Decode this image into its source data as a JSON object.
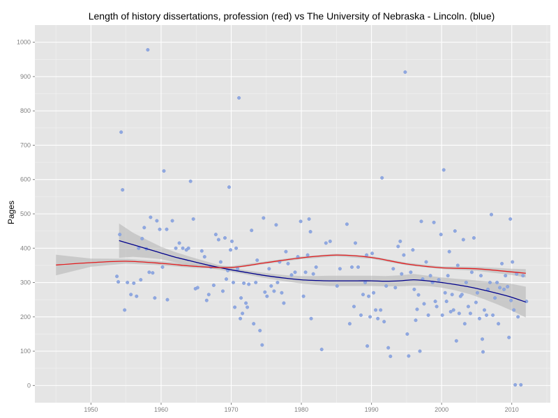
{
  "chart_data": {
    "type": "scatter",
    "title": "Length of history dissertations, profession (red) vs The University of Nebraska - Lincoln. (blue)",
    "xlabel": "",
    "ylabel": "Pages",
    "xlim": [
      1942,
      2015.5
    ],
    "ylim": [
      -50,
      1050
    ],
    "x_ticks": [
      1950,
      1960,
      1970,
      1980,
      1990,
      2000,
      2010
    ],
    "y_ticks": [
      0,
      100,
      200,
      300,
      400,
      500,
      600,
      700,
      800,
      900,
      1000
    ],
    "grid": true,
    "legend": "none",
    "colors": {
      "panel": "#e5e5e5",
      "grid_major": "#ffffff",
      "grid_minor": "#f2f2f2",
      "points": "#8fa8e0",
      "ribbon": "#b3b3b3",
      "unl_line": "#00008b",
      "profession_line": "#e31a1c"
    },
    "points": [
      [
        1953.7,
        318
      ],
      [
        1953.9,
        302
      ],
      [
        1954.1,
        440
      ],
      [
        1954.3,
        738
      ],
      [
        1954.5,
        570
      ],
      [
        1954.8,
        220
      ],
      [
        1955.2,
        300
      ],
      [
        1955.7,
        265
      ],
      [
        1956.1,
        298
      ],
      [
        1956.5,
        260
      ],
      [
        1956.8,
        400
      ],
      [
        1957.1,
        308
      ],
      [
        1957.3,
        428
      ],
      [
        1957.6,
        460
      ],
      [
        1957.9,
        398
      ],
      [
        1958.1,
        978
      ],
      [
        1958.3,
        330
      ],
      [
        1958.5,
        490
      ],
      [
        1958.8,
        328
      ],
      [
        1959.1,
        255
      ],
      [
        1959.4,
        480
      ],
      [
        1959.8,
        455
      ],
      [
        1960.2,
        345
      ],
      [
        1960.4,
        625
      ],
      [
        1960.8,
        455
      ],
      [
        1960.9,
        250
      ],
      [
        1961.6,
        480
      ],
      [
        1962.1,
        400
      ],
      [
        1962.6,
        415
      ],
      [
        1963.1,
        400
      ],
      [
        1963.6,
        395
      ],
      [
        1963.9,
        400
      ],
      [
        1964.2,
        595
      ],
      [
        1964.6,
        485
      ],
      [
        1964.9,
        282
      ],
      [
        1965.2,
        285
      ],
      [
        1965.8,
        392
      ],
      [
        1966.2,
        375
      ],
      [
        1966.5,
        248
      ],
      [
        1966.8,
        265
      ],
      [
        1967.1,
        345
      ],
      [
        1967.5,
        292
      ],
      [
        1967.8,
        440
      ],
      [
        1968.2,
        425
      ],
      [
        1968.5,
        360
      ],
      [
        1968.8,
        275
      ],
      [
        1969.1,
        430
      ],
      [
        1969.3,
        310
      ],
      [
        1969.5,
        335
      ],
      [
        1969.7,
        578
      ],
      [
        1969.9,
        395
      ],
      [
        1970.1,
        420
      ],
      [
        1970.3,
        300
      ],
      [
        1970.5,
        228
      ],
      [
        1970.7,
        400
      ],
      [
        1970.9,
        340
      ],
      [
        1971.1,
        838
      ],
      [
        1971.3,
        195
      ],
      [
        1971.4,
        255
      ],
      [
        1971.6,
        210
      ],
      [
        1971.8,
        298
      ],
      [
        1972.1,
        240
      ],
      [
        1972.3,
        228
      ],
      [
        1972.5,
        295
      ],
      [
        1972.9,
        452
      ],
      [
        1973.2,
        180
      ],
      [
        1973.5,
        300
      ],
      [
        1973.7,
        365
      ],
      [
        1974.1,
        160
      ],
      [
        1974.4,
        118
      ],
      [
        1974.6,
        488
      ],
      [
        1974.8,
        272
      ],
      [
        1975.1,
        260
      ],
      [
        1975.4,
        340
      ],
      [
        1975.7,
        290
      ],
      [
        1976.1,
        275
      ],
      [
        1976.4,
        468
      ],
      [
        1976.6,
        300
      ],
      [
        1976.9,
        360
      ],
      [
        1977.2,
        270
      ],
      [
        1977.5,
        240
      ],
      [
        1977.8,
        390
      ],
      [
        1978.1,
        355
      ],
      [
        1978.6,
        322
      ],
      [
        1979.1,
        330
      ],
      [
        1979.5,
        375
      ],
      [
        1979.9,
        478
      ],
      [
        1980.3,
        260
      ],
      [
        1980.6,
        330
      ],
      [
        1980.9,
        380
      ],
      [
        1981.1,
        485
      ],
      [
        1981.3,
        448
      ],
      [
        1981.4,
        195
      ],
      [
        1981.7,
        325
      ],
      [
        1982.1,
        345
      ],
      [
        1982.9,
        105
      ],
      [
        1983.5,
        415
      ],
      [
        1984.1,
        420
      ],
      [
        1985.1,
        290
      ],
      [
        1985.5,
        340
      ],
      [
        1986.5,
        470
      ],
      [
        1986.9,
        180
      ],
      [
        1987.2,
        345
      ],
      [
        1987.5,
        230
      ],
      [
        1987.7,
        415
      ],
      [
        1988.1,
        345
      ],
      [
        1988.5,
        205
      ],
      [
        1988.8,
        265
      ],
      [
        1989.1,
        300
      ],
      [
        1989.3,
        380
      ],
      [
        1989.4,
        115
      ],
      [
        1989.6,
        260
      ],
      [
        1989.8,
        200
      ],
      [
        1990.1,
        385
      ],
      [
        1990.3,
        270
      ],
      [
        1990.6,
        220
      ],
      [
        1990.9,
        195
      ],
      [
        1991.3,
        220
      ],
      [
        1991.5,
        605
      ],
      [
        1991.8,
        186
      ],
      [
        1992.1,
        290
      ],
      [
        1992.4,
        110
      ],
      [
        1992.7,
        85
      ],
      [
        1993.1,
        340
      ],
      [
        1993.4,
        285
      ],
      [
        1993.8,
        405
      ],
      [
        1994.1,
        420
      ],
      [
        1994.3,
        325
      ],
      [
        1994.6,
        380
      ],
      [
        1994.8,
        913
      ],
      [
        1995.1,
        150
      ],
      [
        1995.3,
        86
      ],
      [
        1995.6,
        330
      ],
      [
        1995.9,
        395
      ],
      [
        1996.1,
        280
      ],
      [
        1996.3,
        190
      ],
      [
        1996.5,
        222
      ],
      [
        1996.7,
        264
      ],
      [
        1996.9,
        100
      ],
      [
        1997.1,
        478
      ],
      [
        1997.3,
        310
      ],
      [
        1997.5,
        238
      ],
      [
        1997.8,
        360
      ],
      [
        1998.1,
        205
      ],
      [
        1998.4,
        320
      ],
      [
        1998.7,
        300
      ],
      [
        1998.9,
        475
      ],
      [
        1999.1,
        245
      ],
      [
        1999.3,
        230
      ],
      [
        1999.6,
        308
      ],
      [
        1999.9,
        440
      ],
      [
        2000.1,
        205
      ],
      [
        2000.3,
        628
      ],
      [
        2000.5,
        270
      ],
      [
        2000.7,
        245
      ],
      [
        2000.9,
        320
      ],
      [
        2001.1,
        390
      ],
      [
        2001.3,
        215
      ],
      [
        2001.5,
        265
      ],
      [
        2001.7,
        220
      ],
      [
        2001.9,
        450
      ],
      [
        2002.1,
        130
      ],
      [
        2002.3,
        350
      ],
      [
        2002.5,
        210
      ],
      [
        2002.7,
        260
      ],
      [
        2002.9,
        265
      ],
      [
        2003.1,
        425
      ],
      [
        2003.3,
        180
      ],
      [
        2003.5,
        300
      ],
      [
        2003.8,
        230
      ],
      [
        2004.1,
        210
      ],
      [
        2004.3,
        330
      ],
      [
        2004.6,
        430
      ],
      [
        2004.9,
        242
      ],
      [
        2005.1,
        270
      ],
      [
        2005.4,
        195
      ],
      [
        2005.6,
        320
      ],
      [
        2005.8,
        135
      ],
      [
        2005.9,
        98
      ],
      [
        2006.1,
        220
      ],
      [
        2006.4,
        205
      ],
      [
        2006.6,
        280
      ],
      [
        2006.9,
        300
      ],
      [
        2007.1,
        498
      ],
      [
        2007.3,
        205
      ],
      [
        2007.6,
        255
      ],
      [
        2007.9,
        300
      ],
      [
        2008.1,
        180
      ],
      [
        2008.3,
        285
      ],
      [
        2008.6,
        355
      ],
      [
        2008.9,
        280
      ],
      [
        2009.1,
        320
      ],
      [
        2009.4,
        288
      ],
      [
        2009.6,
        140
      ],
      [
        2009.8,
        485
      ],
      [
        2009.9,
        248
      ],
      [
        2010.1,
        360
      ],
      [
        2010.3,
        220
      ],
      [
        2010.5,
        2
      ],
      [
        2010.7,
        325
      ],
      [
        2010.9,
        200
      ],
      [
        2011.3,
        2
      ],
      [
        2011.6,
        320
      ],
      [
        2012.1,
        245
      ]
    ],
    "series": [
      {
        "x": [
          1954,
          1956,
          1958,
          1960,
          1962,
          1964,
          1966,
          1968,
          1970,
          1972,
          1974,
          1976,
          1978,
          1980,
          1982,
          1984,
          1986,
          1988,
          1990,
          1992,
          1994,
          1996,
          1998,
          2000,
          2002,
          2004,
          2006,
          2008,
          2010,
          2012
        ],
        "y": [
          422,
          410,
          398,
          386,
          374,
          364,
          354,
          345,
          337,
          330,
          323,
          317,
          312,
          308,
          306,
          305,
          305,
          305,
          305,
          304,
          305,
          308,
          305,
          300,
          294,
          287,
          278,
          268,
          257,
          243
        ],
        "band_lower": [
          372,
          375,
          372,
          368,
          359,
          352,
          344,
          338,
          331,
          324,
          316,
          309,
          303,
          297,
          293,
          290,
          290,
          290,
          290,
          289,
          289,
          291,
          290,
          285,
          277,
          266,
          252,
          236,
          218,
          198
        ],
        "band_upper": [
          472,
          445,
          424,
          404,
          389,
          376,
          364,
          352,
          343,
          336,
          330,
          325,
          321,
          319,
          319,
          320,
          320,
          320,
          320,
          319,
          321,
          325,
          320,
          315,
          311,
          308,
          304,
          300,
          296,
          288
        ]
      },
      {
        "x": [
          1945,
          1950,
          1955,
          1960,
          1965,
          1970,
          1975,
          1980,
          1985,
          1990,
          1995,
          2000,
          2005,
          2010,
          2012
        ],
        "y": [
          351,
          358,
          362,
          356,
          347,
          344,
          358,
          372,
          380,
          373,
          354,
          343,
          340,
          331,
          327
        ],
        "band_lower": [
          321,
          346,
          355,
          350,
          342,
          340,
          354,
          368,
          376,
          369,
          350,
          339,
          334,
          322,
          315
        ],
        "band_upper": [
          381,
          370,
          369,
          362,
          352,
          348,
          362,
          376,
          384,
          377,
          358,
          347,
          346,
          340,
          339
        ]
      }
    ]
  }
}
